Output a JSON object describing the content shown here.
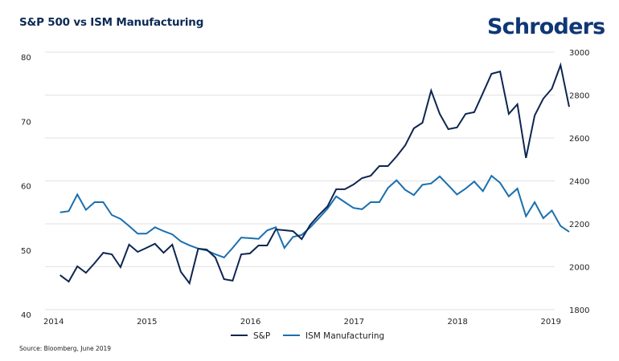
{
  "header": {
    "title": "S&P 500 vs ISM Manufacturing",
    "logo": "Schroders"
  },
  "footer": {
    "source": "Source: Bloomberg, June 2019"
  },
  "colors": {
    "sp": "#0d2650",
    "ism": "#1a6fae",
    "grid": "#e2e2e2"
  },
  "chart_data": {
    "type": "line",
    "title": "S&P 500 vs ISM Manufacturing",
    "xlabel": "",
    "x_ticks": [
      "2014",
      "2015",
      "2016",
      "2017",
      "2018",
      "2019"
    ],
    "x_range": [
      "2014-01",
      "2019-01"
    ],
    "x_start": "2014-02",
    "x_frequency": "monthly",
    "left_axis": {
      "label": "ISM Manufacturing",
      "ticks": [
        "80",
        "70",
        "60",
        "50",
        "40"
      ],
      "range": [
        40,
        80
      ]
    },
    "right_axis": {
      "label": "S&P",
      "ticks": [
        "3000",
        "2800",
        "2600",
        "2400",
        "2200",
        "2000",
        "1800"
      ],
      "range": [
        1800,
        3000
      ]
    },
    "grid": true,
    "legend": {
      "position": "bottom",
      "entries": [
        "S&P",
        "ISM Manufacturing"
      ]
    },
    "series": [
      {
        "name": "S&P",
        "axis": "right",
        "values": [
          1961,
          1931,
          2002,
          1972,
          2017,
          2065,
          2058,
          1998,
          2103,
          2069,
          2088,
          2107,
          2065,
          2103,
          1976,
          1923,
          2084,
          2080,
          2043,
          1942,
          1935,
          2058,
          2062,
          2099,
          2099,
          2174,
          2170,
          2166,
          2129,
          2196,
          2241,
          2282,
          2361,
          2361,
          2383,
          2413,
          2424,
          2469,
          2469,
          2514,
          2566,
          2645,
          2671,
          2821,
          2712,
          2641,
          2649,
          2712,
          2720,
          2809,
          2899,
          2910,
          2712,
          2757,
          2507,
          2705,
          2783,
          2830,
          2940,
          2745
        ]
      },
      {
        "name": "ISM Manufacturing",
        "axis": "left",
        "values": [
          55.1,
          55.3,
          57.9,
          55.5,
          56.7,
          56.7,
          54.7,
          54.1,
          53.0,
          51.8,
          51.8,
          52.8,
          52.2,
          51.7,
          50.6,
          50.0,
          49.5,
          49.2,
          48.6,
          48.1,
          49.6,
          51.2,
          51.1,
          51.0,
          52.3,
          52.8,
          49.6,
          51.3,
          51.6,
          52.8,
          54.2,
          55.7,
          57.6,
          56.7,
          55.8,
          55.6,
          56.7,
          56.7,
          58.9,
          60.1,
          58.6,
          57.8,
          59.4,
          59.6,
          60.7,
          59.3,
          57.9,
          58.8,
          59.9,
          58.4,
          60.8,
          59.7,
          57.6,
          58.8,
          54.5,
          56.7,
          54.2,
          55.4,
          53.0,
          52.1
        ]
      }
    ]
  }
}
